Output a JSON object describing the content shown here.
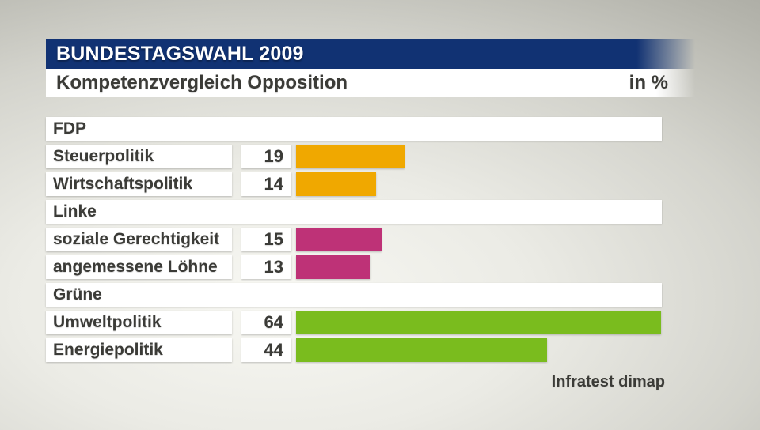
{
  "header": {
    "title": "BUNDESTAGSWAHL 2009",
    "subtitle": "Kompetenzvergleich Opposition",
    "unit_label": "in %"
  },
  "source": "Infratest dimap",
  "colors": {
    "header_blue": "#113273",
    "text_dark": "#3b3b37",
    "fdp_orange": "#F0A800",
    "linke_magenta": "#BE3277",
    "gruene_green": "#7ABC1E"
  },
  "chart_data": {
    "type": "bar",
    "orientation": "horizontal",
    "title": "Kompetenzvergleich Opposition",
    "unit": "%",
    "value_range": [
      0,
      64
    ],
    "grid": false,
    "legend": false,
    "groups": [
      {
        "party": "FDP",
        "color": "#F0A800",
        "items": [
          {
            "label": "Steuerpolitik",
            "value": 19
          },
          {
            "label": "Wirtschaftspolitik",
            "value": 14
          }
        ]
      },
      {
        "party": "Linke",
        "color": "#BE3277",
        "items": [
          {
            "label": "soziale Gerechtigkeit",
            "value": 15
          },
          {
            "label": "angemessene Löhne",
            "value": 13
          }
        ]
      },
      {
        "party": "Grüne",
        "color": "#7ABC1E",
        "items": [
          {
            "label": "Umweltpolitik",
            "value": 64
          },
          {
            "label": "Energiepolitik",
            "value": 44
          }
        ]
      }
    ]
  }
}
